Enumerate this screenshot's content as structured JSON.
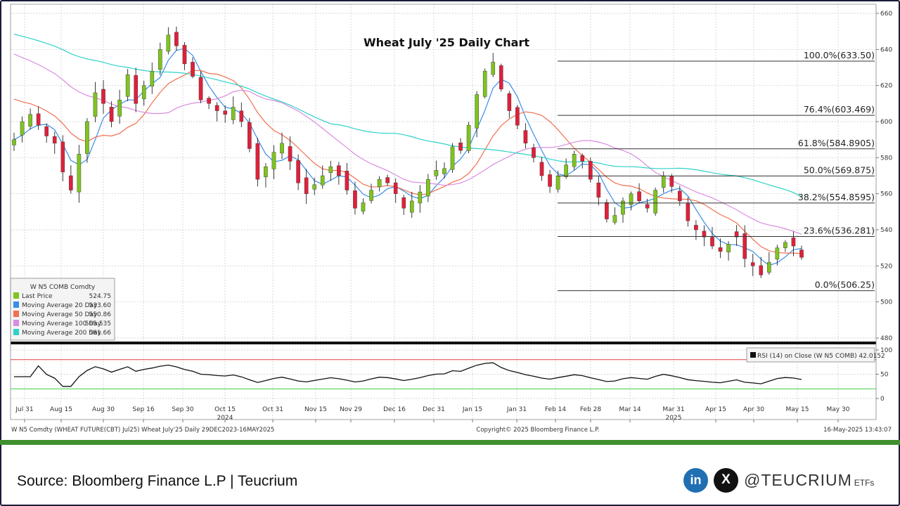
{
  "chart_data": {
    "type": "candlestick",
    "title": "Wheat July '25 Daily Chart",
    "price_axis": {
      "min": 480,
      "max": 660,
      "ticks": [
        660,
        640,
        620,
        600,
        580,
        560,
        540,
        520,
        500,
        480
      ]
    },
    "rsi_axis": {
      "ticks": [
        100,
        50,
        0
      ],
      "overbought": 80,
      "oversold": 20
    },
    "x_labels": [
      "Jul 31",
      "Aug 15",
      "Aug 30",
      "Sep 16",
      "Sep 30",
      "Oct 15",
      "Oct 31",
      "Nov 15",
      "Nov 29",
      "Dec 16",
      "Dec 31",
      "Jan 15",
      "Jan 31",
      "Feb 14",
      "Feb 28",
      "Mar 14",
      "Mar 31",
      "Apr 15",
      "Apr 30",
      "May 15",
      "May 30"
    ],
    "year_labels": [
      {
        "after_label": "Oct 15",
        "text": "2024"
      },
      {
        "after_label": "Mar 31",
        "text": "2025"
      }
    ],
    "close_series": [
      590,
      600,
      604,
      598,
      592,
      588,
      572,
      562,
      582,
      600,
      616,
      610,
      600,
      612,
      626,
      610,
      620,
      628,
      640,
      648,
      642,
      632,
      625,
      612,
      610,
      606,
      604,
      608,
      600,
      585,
      568,
      575,
      583,
      588,
      578,
      566,
      560,
      565,
      570,
      575,
      570,
      562,
      552,
      555,
      562,
      568,
      566,
      560,
      552,
      556,
      561,
      568,
      573,
      574,
      586,
      584,
      598,
      615,
      628,
      633,
      618,
      606,
      598,
      588,
      580,
      570,
      564,
      570,
      576,
      582,
      578,
      568,
      558,
      546,
      548,
      556,
      560,
      556,
      552,
      562,
      570,
      564,
      556,
      545,
      540,
      536,
      531,
      528,
      532,
      536,
      524,
      520,
      515,
      522,
      530,
      533,
      531,
      524.75
    ],
    "fibonacci": [
      {
        "label": "100.0%(633.50)",
        "value": 633.5
      },
      {
        "label": "76.4%(603.469)",
        "value": 603.469
      },
      {
        "label": "61.8%(584.8905)",
        "value": 584.8905
      },
      {
        "label": "50.0%(569.875)",
        "value": 569.875
      },
      {
        "label": "38.2%(554.8595)",
        "value": 554.8595
      },
      {
        "label": "23.6%(536.281)",
        "value": 536.281
      },
      {
        "label": "0.0%(506.25)",
        "value": 506.25
      }
    ],
    "legend": {
      "title": "W N5 COMB Comdty",
      "items": [
        {
          "label": "Last Price",
          "value": "524.75",
          "color": "#7fc41f"
        },
        {
          "label": "Moving Average 20 Day",
          "value": "533.60",
          "color": "#3a8ee6"
        },
        {
          "label": "Moving Average 50 Day",
          "value": "550.86",
          "color": "#f07050"
        },
        {
          "label": "Moving Average 100 Day",
          "value": "565.535",
          "color": "#d98ce0"
        },
        {
          "label": "Moving Average 200 Day",
          "value": "581.66",
          "color": "#2fd2c9"
        }
      ]
    },
    "rsi_label": "RSI (14)  on Close (W N5 COMB) 42.0152",
    "colors": {
      "up": "#7fc41f",
      "down": "#e0203a"
    }
  },
  "footer": {
    "left": "W N5 Comdty (WHEAT FUTURE(CBT) Jul25) Wheat July'25  Daily 29DEC2023-16MAY2025",
    "center": "Copyright© 2025 Bloomberg Finance L.P.",
    "right": "16-May-2025 13:43:07"
  },
  "source": "Source: Bloomberg Finance L.P | Teucrium",
  "social": {
    "linkedin_icon": "in",
    "x_icon": "X",
    "handle": "@TEUCRIUM",
    "suffix": "ETFs"
  }
}
